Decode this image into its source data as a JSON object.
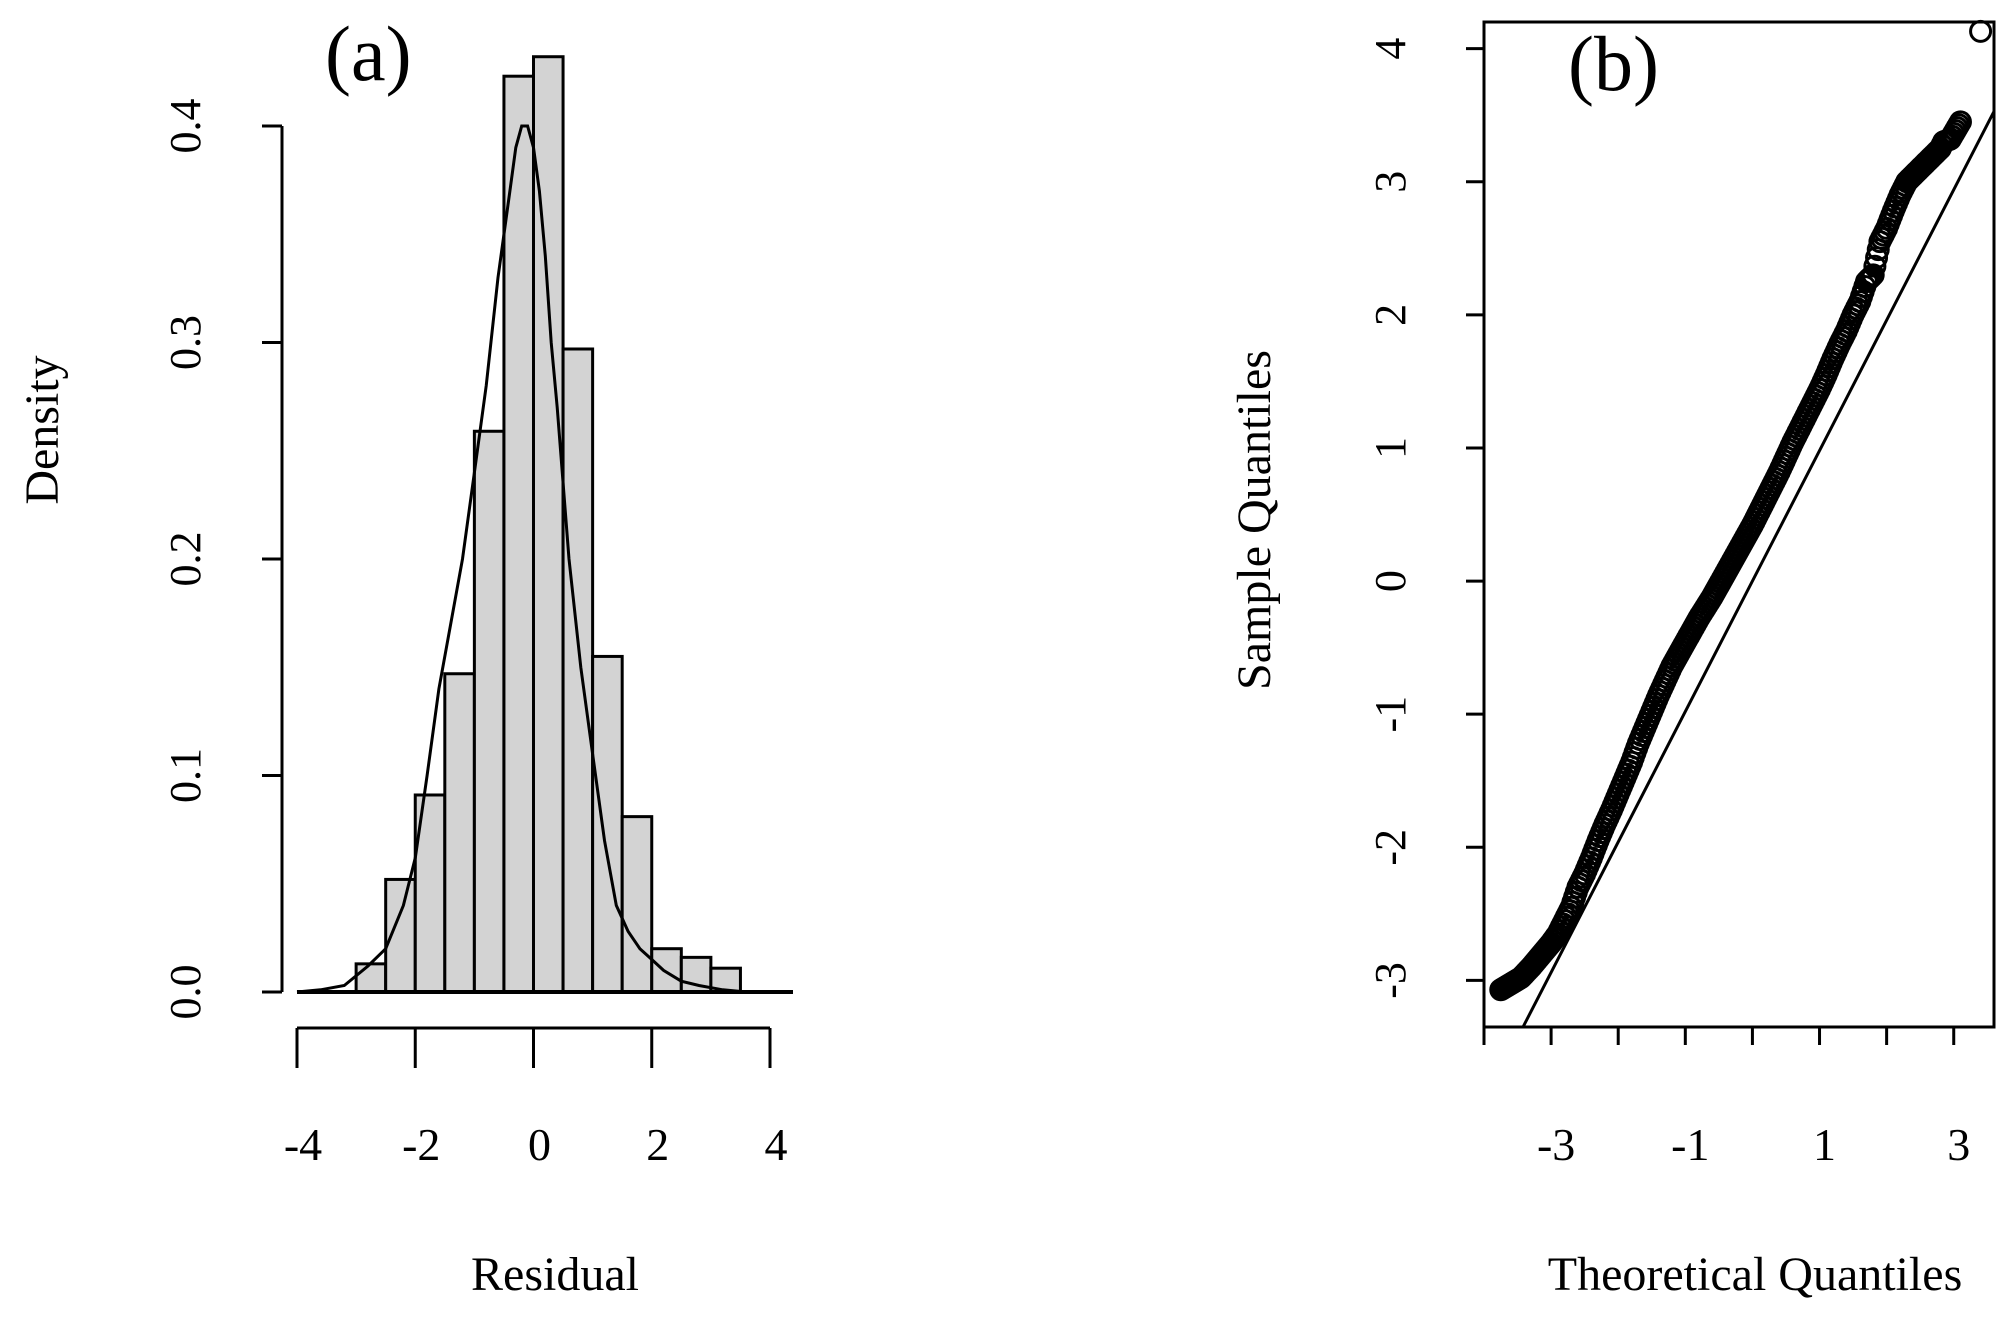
{
  "chart_data": [
    {
      "panel": "(a)",
      "type": "bar",
      "subtype": "histogram-with-density",
      "xlabel": "Residual",
      "ylabel": "Density",
      "xlim": [
        -4,
        4
      ],
      "ylim": [
        0,
        0.4
      ],
      "xticks": [
        -4,
        -2,
        0,
        2,
        4
      ],
      "xtick_labels": [
        "-4",
        "-2",
        "0",
        "2",
        "4"
      ],
      "yticks": [
        0,
        0.1,
        0.2,
        0.3,
        0.4
      ],
      "ytick_labels": [
        "0.0",
        "0.1",
        "0.2",
        "0.3",
        "0.4"
      ],
      "bin_width": 0.5,
      "bins": [
        {
          "from": -3.5,
          "to": -3.0,
          "density": 0.0
        },
        {
          "from": -3.0,
          "to": -2.5,
          "density": 0.013
        },
        {
          "from": -2.5,
          "to": -2.0,
          "density": 0.052
        },
        {
          "from": -2.0,
          "to": -1.5,
          "density": 0.091
        },
        {
          "from": -1.5,
          "to": -1.0,
          "density": 0.147
        },
        {
          "from": -1.0,
          "to": -0.5,
          "density": 0.259
        },
        {
          "from": -0.5,
          "to": 0.0,
          "density": 0.423
        },
        {
          "from": 0.0,
          "to": 0.5,
          "density": 0.432
        },
        {
          "from": 0.5,
          "to": 1.0,
          "density": 0.297
        },
        {
          "from": 1.0,
          "to": 1.5,
          "density": 0.155
        },
        {
          "from": 1.5,
          "to": 2.0,
          "density": 0.081
        },
        {
          "from": 2.0,
          "to": 2.5,
          "density": 0.02
        },
        {
          "from": 2.5,
          "to": 3.0,
          "density": 0.016
        },
        {
          "from": 3.0,
          "to": 3.5,
          "density": 0.011
        }
      ],
      "density_curve": {
        "x": [
          -4.0,
          -3.6,
          -3.2,
          -2.8,
          -2.5,
          -2.2,
          -2.0,
          -1.8,
          -1.6,
          -1.4,
          -1.2,
          -1.0,
          -0.8,
          -0.6,
          -0.4,
          -0.3,
          -0.2,
          -0.1,
          0.0,
          0.1,
          0.2,
          0.3,
          0.4,
          0.6,
          0.8,
          1.0,
          1.2,
          1.4,
          1.6,
          1.8,
          2.0,
          2.2,
          2.5,
          2.8,
          3.2,
          3.6,
          4.0
        ],
        "y": [
          0.0,
          0.001,
          0.003,
          0.012,
          0.02,
          0.04,
          0.062,
          0.1,
          0.14,
          0.17,
          0.2,
          0.24,
          0.28,
          0.33,
          0.37,
          0.39,
          0.4,
          0.4,
          0.39,
          0.37,
          0.34,
          0.3,
          0.27,
          0.2,
          0.15,
          0.11,
          0.07,
          0.04,
          0.028,
          0.02,
          0.015,
          0.01,
          0.005,
          0.003,
          0.001,
          0.0,
          0.0
        ]
      }
    },
    {
      "panel": "(b)",
      "type": "scatter",
      "subtype": "normal-qq-plot",
      "xlabel": "Theoretical Quantiles",
      "ylabel": "Sample Quantiles",
      "xlim": [
        -4,
        3.6
      ],
      "ylim": [
        -3.35,
        4.2
      ],
      "xticks": [
        -3,
        -1,
        1,
        3
      ],
      "xtick_labels": [
        "-3",
        "-1",
        "1",
        "3"
      ],
      "xtick_marks": [
        -4,
        -3,
        -2,
        -1,
        0,
        1,
        2,
        3
      ],
      "yticks": [
        -3,
        -2,
        -1,
        0,
        1,
        2,
        3,
        4
      ],
      "ytick_labels": [
        "-3",
        "-2",
        "-1",
        "0",
        "1",
        "2",
        "3",
        "4"
      ],
      "reference_line": {
        "intercept": 0.0,
        "slope": 0.98
      },
      "points": {
        "x": [
          -3.75,
          -3.45,
          -3.3,
          -3.2,
          -3.1,
          -3.0,
          -2.9,
          -2.8,
          -2.7,
          -2.6,
          -2.5,
          -2.4,
          -2.3,
          -2.2,
          -2.1,
          -2.0,
          -1.9,
          -1.8,
          -1.7,
          -1.6,
          -1.5,
          -1.4,
          -1.3,
          -1.2,
          -1.1,
          -1.0,
          -0.9,
          -0.8,
          -0.7,
          -0.6,
          -0.5,
          -0.4,
          -0.3,
          -0.2,
          -0.1,
          0.0,
          0.1,
          0.2,
          0.3,
          0.4,
          0.5,
          0.6,
          0.7,
          0.8,
          0.9,
          1.0,
          1.1,
          1.2,
          1.3,
          1.4,
          1.5,
          1.6,
          1.7,
          1.8,
          1.85,
          1.9,
          2.0,
          2.1,
          2.2,
          2.3,
          2.4,
          2.5,
          2.6,
          2.7,
          2.8,
          2.85,
          2.95,
          3.1,
          3.4
        ],
        "y": [
          -3.07,
          -2.98,
          -2.9,
          -2.84,
          -2.78,
          -2.72,
          -2.65,
          -2.55,
          -2.45,
          -2.3,
          -2.2,
          -2.08,
          -1.95,
          -1.83,
          -1.72,
          -1.6,
          -1.48,
          -1.36,
          -1.22,
          -1.1,
          -0.98,
          -0.86,
          -0.75,
          -0.64,
          -0.55,
          -0.46,
          -0.37,
          -0.28,
          -0.2,
          -0.12,
          -0.03,
          0.06,
          0.15,
          0.24,
          0.33,
          0.42,
          0.52,
          0.62,
          0.72,
          0.82,
          0.93,
          1.04,
          1.14,
          1.24,
          1.34,
          1.44,
          1.55,
          1.67,
          1.78,
          1.88,
          2.0,
          2.1,
          2.25,
          2.3,
          2.43,
          2.55,
          2.65,
          2.78,
          2.9,
          3.0,
          3.05,
          3.1,
          3.15,
          3.2,
          3.25,
          3.3,
          3.32,
          3.45,
          4.13
        ]
      }
    }
  ],
  "panels": {
    "a": {
      "label": "(a)"
    },
    "b": {
      "label": "(b)"
    }
  }
}
